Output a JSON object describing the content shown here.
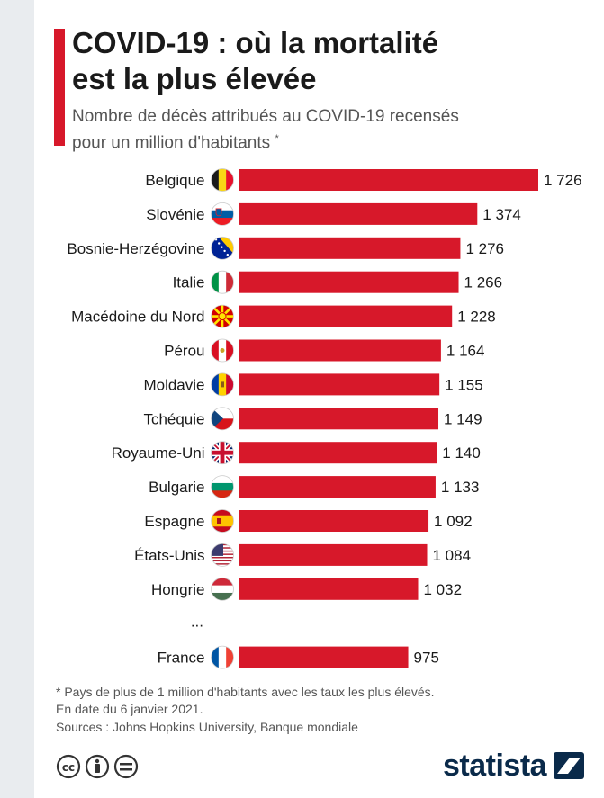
{
  "header": {
    "title_line1": "COVID-19 : où la mortalité",
    "title_line2": "est la plus élevée",
    "subtitle_line1": "Nombre de décès attribués au COVID-19 recensés",
    "subtitle_line2": "pour un million d'habitants",
    "subtitle_mark": "*"
  },
  "chart_data": {
    "type": "bar",
    "orientation": "horizontal",
    "title": "COVID-19 : où la mortalité est la plus élevée",
    "subtitle": "Nombre de décès attribués au COVID-19 recensés pour un million d'habitants *",
    "categories": [
      "Belgique",
      "Slovénie",
      "Bosnie-Herzégovine",
      "Italie",
      "Macédoine du Nord",
      "Pérou",
      "Moldavie",
      "Tchéquie",
      "Royaume-Uni",
      "Bulgarie",
      "Espagne",
      "États-Unis",
      "Hongrie",
      "France"
    ],
    "values": [
      1726,
      1374,
      1276,
      1266,
      1228,
      1164,
      1155,
      1149,
      1140,
      1133,
      1092,
      1084,
      1032,
      975
    ],
    "value_labels": [
      "1 726",
      "1 374",
      "1 276",
      "1 266",
      "1 228",
      "1 164",
      "1 155",
      "1 149",
      "1 140",
      "1 133",
      "1 092",
      "1 084",
      "1 032",
      "975"
    ],
    "gap_marker": "...",
    "gap_after_index": 12,
    "xlim": [
      0,
      1726
    ],
    "grid": false,
    "legend": "none",
    "bar_color": "#d7182a"
  },
  "flags": [
    "belgium-flag-icon",
    "slovenia-flag-icon",
    "bosnia-flag-icon",
    "italy-flag-icon",
    "north-macedonia-flag-icon",
    "peru-flag-icon",
    "moldova-flag-icon",
    "czechia-flag-icon",
    "uk-flag-icon",
    "bulgaria-flag-icon",
    "spain-flag-icon",
    "usa-flag-icon",
    "hungary-flag-icon",
    "france-flag-icon"
  ],
  "footer": {
    "note": "* Pays de plus de 1 million d'habitants avec les taux les plus élevés.",
    "date": "En date du 6 janvier 2021.",
    "sources": "Sources : Johns Hopkins University, Banque mondiale"
  },
  "brand": {
    "name": "statista"
  },
  "colors": {
    "accent": "#d7182a",
    "brand": "#0a2a4a"
  }
}
